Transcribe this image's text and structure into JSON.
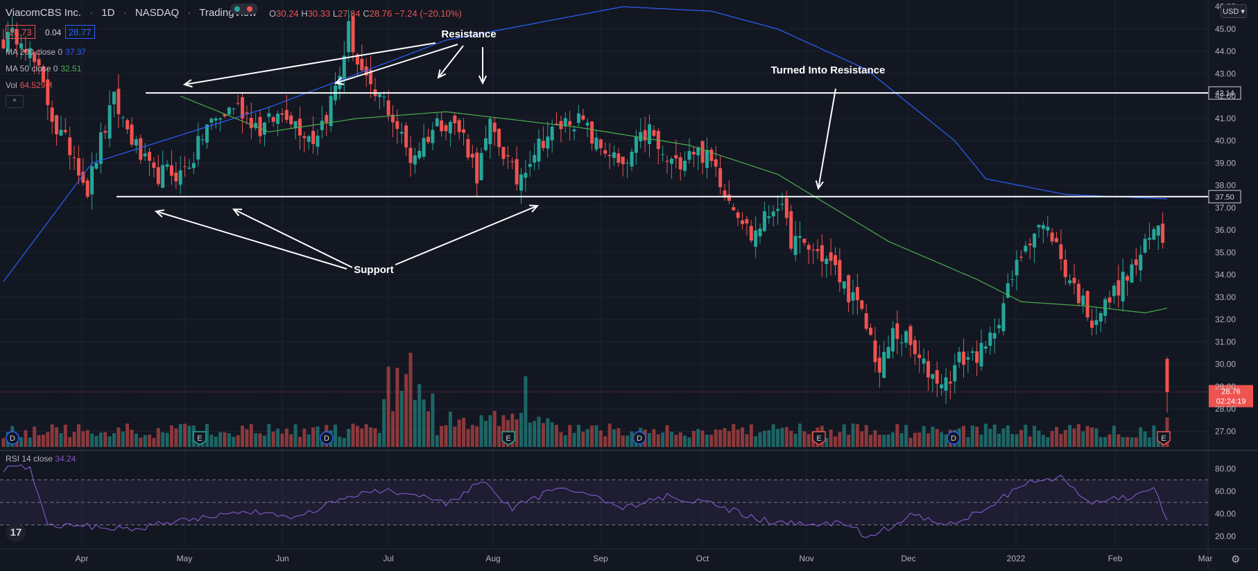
{
  "header": {
    "symbol": "ViacomCBS Inc.",
    "interval": "1D",
    "exchange": "NASDAQ",
    "source": "TradingView",
    "ohlc": {
      "o_label": "O",
      "o": "30.24",
      "h_label": "H",
      "h": "30.33",
      "l_label": "L",
      "l": "27.84",
      "c_label": "C",
      "c": "28.76",
      "change": "−7.24 (−20.10%)"
    },
    "bid": "28.73",
    "spread": "0.04",
    "ask": "28.77"
  },
  "legend": {
    "ma200_label": "MA 200 close 0",
    "ma200_value": "37.37",
    "ma50_label": "MA 50 close 0",
    "ma50_value": "32.51",
    "vol_label": "Vol",
    "vol_value": "64.529M",
    "collapse": "^"
  },
  "currency": "USD",
  "rsi": {
    "label": "RSI",
    "params": "14 close",
    "value": "34.24"
  },
  "logo": "17",
  "settings_icon": "gear-icon",
  "colors": {
    "up": "#26a69a",
    "down": "#ef5350",
    "ma200": "#2962ff",
    "ma50": "#4caf50",
    "rsi": "#7e57c2",
    "annot": "#ffffff"
  },
  "chart_data": {
    "type": "candlestick",
    "title": "ViacomCBS Inc. 1D NASDAQ",
    "x_months": [
      "Apr",
      "May",
      "Jun",
      "Jul",
      "Aug",
      "Sep",
      "Oct",
      "Nov",
      "Dec",
      "2022",
      "Feb",
      "Mar"
    ],
    "y_ticks": [
      27,
      28,
      29,
      30,
      31,
      32,
      33,
      34,
      35,
      36,
      37,
      38,
      39,
      40,
      41,
      42,
      43,
      44,
      45
    ],
    "y_tick_labels": [
      "27.00",
      "28.00",
      "29.00",
      "30.00",
      "31.00",
      "32.00",
      "33.00",
      "34.00",
      "35.00",
      "36.00",
      "37.00",
      "38.00",
      "39.00",
      "40.00",
      "41.00",
      "42.00",
      "43.00",
      "44.00",
      "45.00"
    ],
    "y_top_label": "46.00",
    "ylim": [
      26.3,
      46.3
    ],
    "levels": [
      {
        "label": "42.14",
        "value": 42.14
      },
      {
        "label": "37.50",
        "value": 37.5
      }
    ],
    "last_price": {
      "label": "28.76",
      "countdown": "02:24:19",
      "value": 28.76
    },
    "close_anchors": [
      [
        0,
        44.5
      ],
      [
        4,
        44.8
      ],
      [
        8,
        43
      ],
      [
        12,
        40.5
      ],
      [
        16,
        39.4
      ],
      [
        19,
        37.8
      ],
      [
        22,
        40
      ],
      [
        25,
        41.8
      ],
      [
        28,
        40.5
      ],
      [
        31,
        39.3
      ],
      [
        34,
        38.4
      ],
      [
        37,
        38.6
      ],
      [
        40,
        38.5
      ],
      [
        43,
        39.3
      ],
      [
        46,
        40.7
      ],
      [
        49,
        41
      ],
      [
        52,
        41.6
      ],
      [
        55,
        41.2
      ],
      [
        58,
        40.5
      ],
      [
        61,
        41
      ],
      [
        64,
        41.3
      ],
      [
        67,
        40.6
      ],
      [
        70,
        40.1
      ],
      [
        73,
        41.2
      ],
      [
        76,
        43
      ],
      [
        78,
        45
      ],
      [
        80,
        43.5
      ],
      [
        83,
        42.1
      ],
      [
        86,
        41.8
      ],
      [
        89,
        40.6
      ],
      [
        92,
        39.2
      ],
      [
        95,
        40
      ],
      [
        98,
        40.8
      ],
      [
        101,
        40.9
      ],
      [
        104,
        40.2
      ],
      [
        107,
        38.5
      ],
      [
        110,
        40.6
      ],
      [
        113,
        39.5
      ],
      [
        116,
        38.2
      ],
      [
        119,
        39.3
      ],
      [
        122,
        40.1
      ],
      [
        125,
        40.5
      ],
      [
        128,
        41
      ],
      [
        131,
        40.8
      ],
      [
        134,
        39.8
      ],
      [
        137,
        39.5
      ],
      [
        140,
        38.6
      ],
      [
        143,
        39.8
      ],
      [
        146,
        40.5
      ],
      [
        149,
        39.2
      ],
      [
        152,
        38.9
      ],
      [
        155,
        39.7
      ],
      [
        158,
        39.4
      ],
      [
        161,
        38.8
      ],
      [
        163,
        37.8
      ],
      [
        166,
        36.9
      ],
      [
        169,
        35.7
      ],
      [
        172,
        36.5
      ],
      [
        175,
        37.3
      ],
      [
        178,
        35.6
      ],
      [
        181,
        35.3
      ],
      [
        184,
        35
      ],
      [
        187,
        34.5
      ],
      [
        190,
        33.5
      ],
      [
        193,
        32.6
      ],
      [
        196,
        31.2
      ],
      [
        198,
        29.6
      ],
      [
        201,
        31.4
      ],
      [
        204,
        31.1
      ],
      [
        207,
        30.1
      ],
      [
        210,
        29.5
      ],
      [
        213,
        29.2
      ],
      [
        216,
        30.2
      ],
      [
        219,
        30.4
      ],
      [
        222,
        30.6
      ],
      [
        225,
        32.2
      ],
      [
        228,
        33.8
      ],
      [
        231,
        35.5
      ],
      [
        234,
        36.2
      ],
      [
        237,
        35.8
      ],
      [
        240,
        34.2
      ],
      [
        243,
        33.1
      ],
      [
        246,
        32
      ],
      [
        249,
        32.6
      ],
      [
        252,
        33.5
      ],
      [
        255,
        34.2
      ],
      [
        258,
        35.2
      ],
      [
        261,
        36.3
      ],
      [
        262,
        35.7
      ],
      [
        263,
        28.76
      ]
    ],
    "ma200_anchors": [
      [
        0,
        33.7
      ],
      [
        20,
        39
      ],
      [
        60,
        41.5
      ],
      [
        100,
        44.5
      ],
      [
        140,
        46
      ],
      [
        160,
        45.8
      ],
      [
        175,
        45
      ],
      [
        195,
        43.2
      ],
      [
        215,
        40
      ],
      [
        222,
        38.3
      ],
      [
        240,
        37.6
      ],
      [
        263,
        37.4
      ]
    ],
    "ma50_anchors": [
      [
        40,
        42
      ],
      [
        60,
        40.4
      ],
      [
        80,
        41
      ],
      [
        100,
        41.3
      ],
      [
        130,
        40.6
      ],
      [
        155,
        39.8
      ],
      [
        175,
        38.5
      ],
      [
        200,
        35.5
      ],
      [
        220,
        33.8
      ],
      [
        230,
        32.8
      ],
      [
        245,
        32.6
      ],
      [
        258,
        32.3
      ],
      [
        263,
        32.51
      ]
    ],
    "rsi_ylim": [
      10,
      90
    ],
    "rsi_ticks": [
      20,
      40,
      60,
      80
    ],
    "rsi_tick_labels": [
      "20.00",
      "40.00",
      "60.00",
      "80.00"
    ],
    "rsi_band": [
      30,
      70
    ],
    "rsi_anchors": [
      [
        0,
        80
      ],
      [
        6,
        82
      ],
      [
        10,
        30
      ],
      [
        30,
        27
      ],
      [
        45,
        37
      ],
      [
        55,
        42
      ],
      [
        65,
        35
      ],
      [
        80,
        58
      ],
      [
        90,
        60
      ],
      [
        100,
        48
      ],
      [
        108,
        68
      ],
      [
        115,
        45
      ],
      [
        125,
        62
      ],
      [
        132,
        58
      ],
      [
        140,
        44
      ],
      [
        150,
        55
      ],
      [
        160,
        50
      ],
      [
        170,
        35
      ],
      [
        180,
        30
      ],
      [
        190,
        32
      ],
      [
        196,
        18
      ],
      [
        205,
        40
      ],
      [
        214,
        30
      ],
      [
        222,
        45
      ],
      [
        232,
        68
      ],
      [
        240,
        72
      ],
      [
        245,
        50
      ],
      [
        255,
        55
      ],
      [
        260,
        62
      ],
      [
        263,
        34.24
      ]
    ],
    "event_markers": [
      {
        "label": "D",
        "x": 2
      },
      {
        "label": "E",
        "x": 42
      },
      {
        "label": "D",
        "x": 70
      },
      {
        "label": "E",
        "x": 109
      },
      {
        "label": "D",
        "x": 138
      },
      {
        "label": "E",
        "x": 178
      },
      {
        "label": "D",
        "x": 206
      },
      {
        "label": "E",
        "x": 254
      }
    ],
    "annotations": [
      {
        "text": "Resistance",
        "cx": 676,
        "cy": 54
      },
      {
        "text": "Turned Into Resistance",
        "cx": 1194,
        "cy": 106
      },
      {
        "text": "Support",
        "cx": 539,
        "cy": 394
      }
    ]
  }
}
